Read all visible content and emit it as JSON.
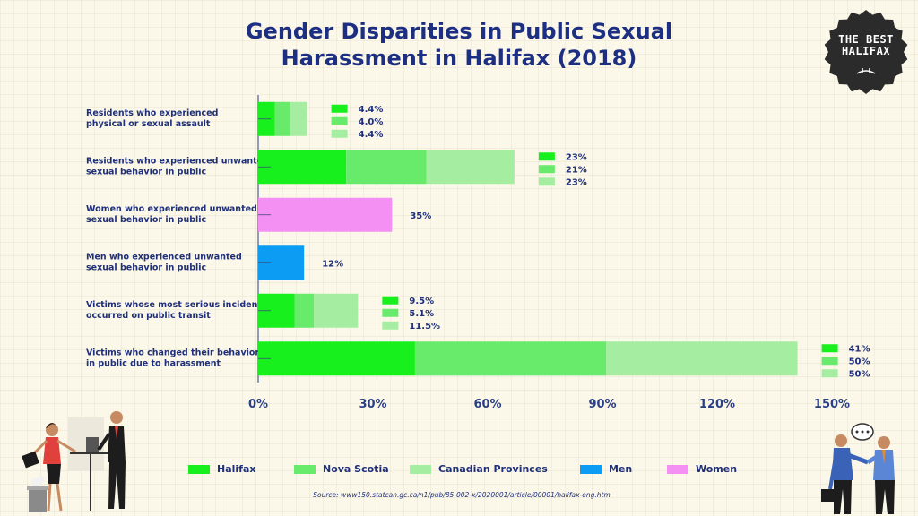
{
  "title_line1": "Gender Disparities in Public Sexual",
  "title_line2": "Harassment in Halifax (2018)",
  "badge": {
    "line1": "THE BEST",
    "line2": "HALIFAX"
  },
  "source": "Source: www150.statcan.gc.ca/n1/pub/85-002-x/2020001/article/00001/halifax-eng.htm",
  "colors": {
    "halifax": "#18f01e",
    "nova_scotia": "#68ea6a",
    "canadian_provinces": "#a5eda0",
    "men": "#0d9cf3",
    "women": "#f490f3",
    "text": "#1f2f7a",
    "axis": "#2a3f86"
  },
  "legend": [
    {
      "label": "Halifax",
      "color": "#18f01e"
    },
    {
      "label": "Nova Scotia",
      "color": "#68ea6a"
    },
    {
      "label": "Canadian Provinces",
      "color": "#a5eda0"
    },
    {
      "label": "Men",
      "color": "#0d9cf3"
    },
    {
      "label": "Women",
      "color": "#f490f3"
    }
  ],
  "chart_data": {
    "type": "bar",
    "orientation": "horizontal",
    "stacked": true,
    "xlim": [
      0,
      150
    ],
    "xticks": [
      "0%",
      "30%",
      "60%",
      "90%",
      "120%",
      "150%"
    ],
    "xtick_values": [
      0,
      30,
      60,
      90,
      120,
      150
    ],
    "legend_position": "bottom",
    "categories": [
      {
        "label": [
          "Residents who experienced",
          "physical or sexual assault"
        ],
        "segments": [
          {
            "series": "Halifax",
            "value": 4.4,
            "label": "4.4%"
          },
          {
            "series": "Nova Scotia",
            "value": 4.0,
            "label": "4.0%"
          },
          {
            "series": "Canadian Provinces",
            "value": 4.4,
            "label": "4.4%"
          }
        ]
      },
      {
        "label": [
          "Residents who experienced unwanted",
          "sexual behavior in public"
        ],
        "segments": [
          {
            "series": "Halifax",
            "value": 23,
            "label": "23%"
          },
          {
            "series": "Nova Scotia",
            "value": 21,
            "label": "21%"
          },
          {
            "series": "Canadian Provinces",
            "value": 23,
            "label": "23%"
          }
        ]
      },
      {
        "label": [
          "Women who experienced unwanted",
          "sexual behavior in public"
        ],
        "segments": [
          {
            "series": "Women",
            "value": 35,
            "label": "35%"
          }
        ]
      },
      {
        "label": [
          "Men who experienced unwanted",
          "sexual behavior in public"
        ],
        "segments": [
          {
            "series": "Men",
            "value": 12,
            "label": "12%"
          }
        ]
      },
      {
        "label": [
          "Victims whose most serious incident",
          "occurred on public transit"
        ],
        "segments": [
          {
            "series": "Halifax",
            "value": 9.5,
            "label": "9.5%"
          },
          {
            "series": "Nova Scotia",
            "value": 5.1,
            "label": "5.1%"
          },
          {
            "series": "Canadian Provinces",
            "value": 11.5,
            "label": "11.5%"
          }
        ]
      },
      {
        "label": [
          "Victims who changed their behavior",
          "in public due to harassment"
        ],
        "segments": [
          {
            "series": "Halifax",
            "value": 41,
            "label": "41%"
          },
          {
            "series": "Nova Scotia",
            "value": 50,
            "label": "50%"
          },
          {
            "series": "Canadian Provinces",
            "value": 50,
            "label": "50%"
          }
        ]
      }
    ]
  }
}
